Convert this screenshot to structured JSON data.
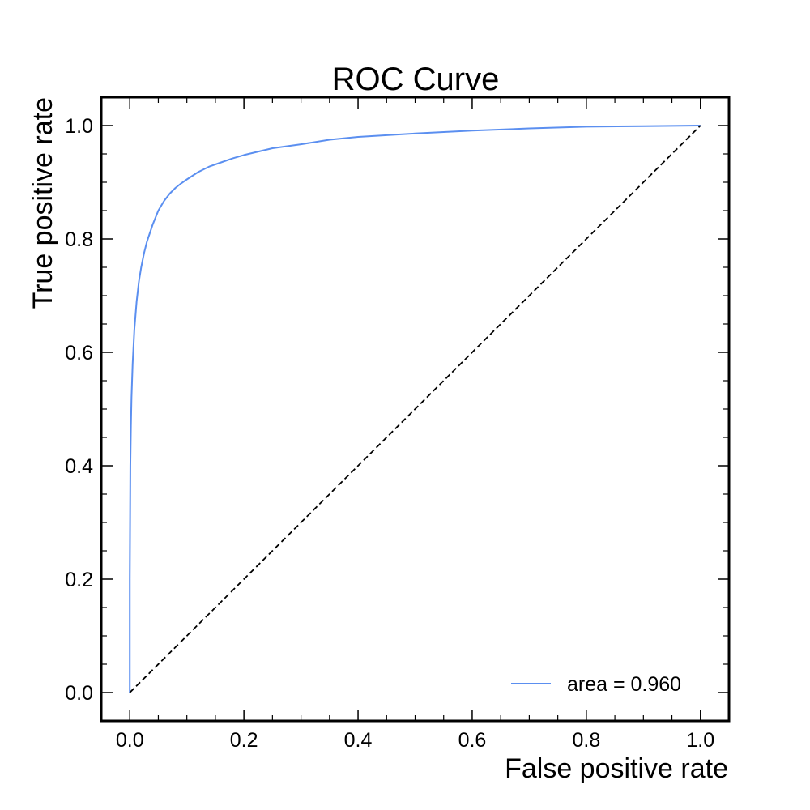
{
  "chart_data": {
    "type": "line",
    "title": "ROC Curve",
    "xlabel": "False positive rate",
    "ylabel": "True positive rate",
    "xlim": [
      -0.05,
      1.05
    ],
    "ylim": [
      -0.05,
      1.05
    ],
    "x_ticks": [
      "0.0",
      "0.2",
      "0.4",
      "0.6",
      "0.8",
      "1.0"
    ],
    "y_ticks": [
      "0.0",
      "0.2",
      "0.4",
      "0.6",
      "0.8",
      "1.0"
    ],
    "x_tick_values": [
      0,
      0.2,
      0.4,
      0.6,
      0.8,
      1.0
    ],
    "y_tick_values": [
      0,
      0.2,
      0.4,
      0.6,
      0.8,
      1.0
    ],
    "grid": false,
    "legend_position": "lower-right",
    "series": [
      {
        "name": "area = 0.960",
        "color": "#5b8ff0",
        "style": "solid",
        "x": [
          0.0,
          0.0,
          0.001,
          0.002,
          0.003,
          0.005,
          0.008,
          0.012,
          0.016,
          0.02,
          0.025,
          0.03,
          0.035,
          0.04,
          0.05,
          0.06,
          0.07,
          0.08,
          0.09,
          0.1,
          0.12,
          0.14,
          0.16,
          0.18,
          0.2,
          0.25,
          0.3,
          0.35,
          0.4,
          0.5,
          0.6,
          0.7,
          0.8,
          0.9,
          1.0
        ],
        "y": [
          0.0,
          0.2,
          0.4,
          0.47,
          0.52,
          0.58,
          0.64,
          0.69,
          0.725,
          0.75,
          0.775,
          0.795,
          0.81,
          0.825,
          0.85,
          0.867,
          0.88,
          0.89,
          0.898,
          0.905,
          0.918,
          0.928,
          0.935,
          0.942,
          0.948,
          0.96,
          0.967,
          0.975,
          0.98,
          0.986,
          0.991,
          0.995,
          0.998,
          0.999,
          1.0
        ]
      },
      {
        "color": "#000000",
        "style": "dashed",
        "x": [
          0,
          1
        ],
        "y": [
          0,
          1
        ]
      }
    ]
  }
}
